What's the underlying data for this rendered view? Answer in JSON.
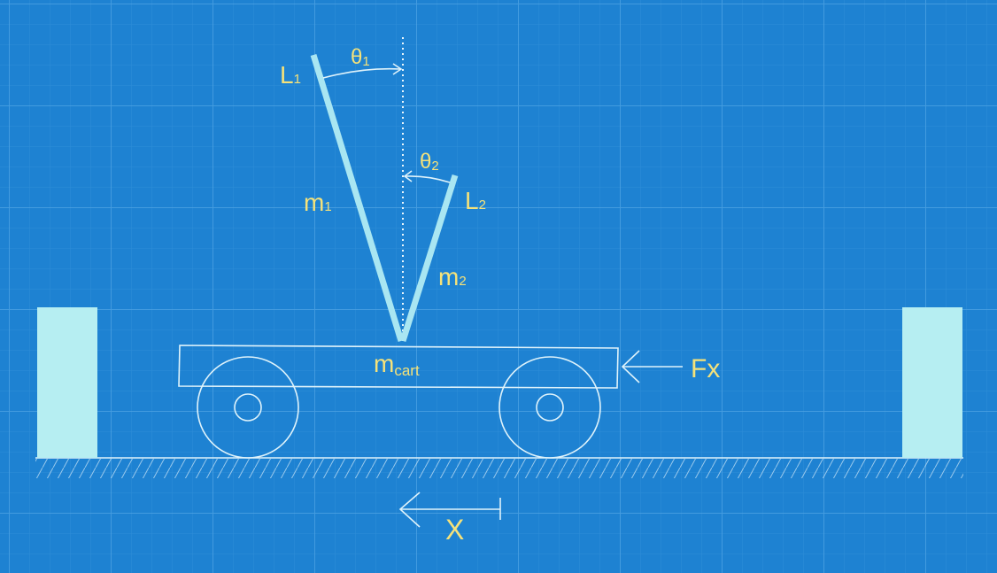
{
  "labels": {
    "theta1": {
      "base": "θ",
      "sub": "1"
    },
    "theta2": {
      "base": "θ",
      "sub": "2"
    },
    "L1": {
      "base": "L",
      "sub": "1"
    },
    "L2": {
      "base": "L",
      "sub": "2"
    },
    "m1": {
      "base": "m",
      "sub": "1"
    },
    "m2": {
      "base": "m",
      "sub": "2"
    },
    "mcart": {
      "base": "m",
      "sub": "cart"
    },
    "force": "Fx",
    "position": "X"
  },
  "colors": {
    "background": "#1e82d2",
    "grid_minor": "#3a95dc",
    "grid_major": "#4fa3e2",
    "pendulum": "#a9e6f2",
    "wall": "#b6eef2",
    "sketch": "#dff3fb",
    "label": "#f5e27a"
  }
}
